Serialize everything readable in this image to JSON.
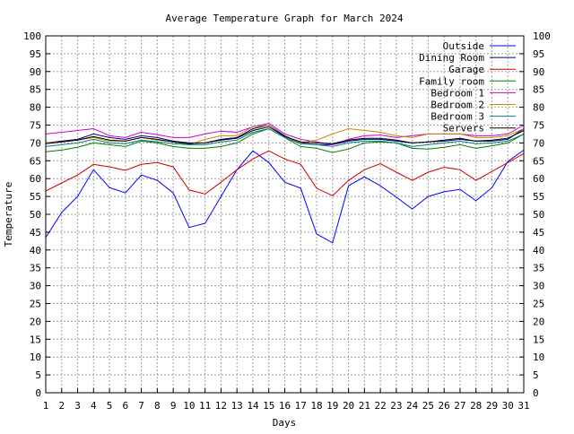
{
  "chart_data": {
    "type": "line",
    "title": "Average Temperature Graph for March 2024",
    "xlabel": "Days",
    "ylabel": "Temperature",
    "xlim": [
      1,
      31
    ],
    "ylim": [
      0,
      100
    ],
    "grid": true,
    "legend_position": "top-right",
    "x": [
      1,
      2,
      3,
      4,
      5,
      6,
      7,
      8,
      9,
      10,
      11,
      12,
      13,
      14,
      15,
      16,
      17,
      18,
      19,
      20,
      21,
      22,
      23,
      24,
      25,
      26,
      27,
      28,
      29,
      30,
      31
    ],
    "x_ticks": [
      "1",
      "2",
      "3",
      "4",
      "5",
      "6",
      "7",
      "8",
      "9",
      "10",
      "11",
      "12",
      "13",
      "14",
      "15",
      "16",
      "17",
      "18",
      "19",
      "20",
      "21",
      "22",
      "23",
      "24",
      "25",
      "26",
      "27",
      "28",
      "29",
      "30",
      "31"
    ],
    "y_ticks": [
      "0",
      "5",
      "10",
      "15",
      "20",
      "25",
      "30",
      "35",
      "40",
      "45",
      "50",
      "55",
      "60",
      "65",
      "70",
      "75",
      "80",
      "85",
      "90",
      "95",
      "100"
    ],
    "series": [
      {
        "name": "Outside",
        "color": "#0000ff",
        "values": [
          43.5,
          50.5,
          55,
          62.5,
          57.5,
          56,
          61,
          59.5,
          56,
          46.3,
          47.5,
          55,
          62.5,
          67.8,
          64.5,
          59,
          57.3,
          44.5,
          42,
          58,
          60.5,
          58,
          54.8,
          51.5,
          55,
          56.3,
          57,
          53.8,
          57.5,
          64.8,
          68
        ]
      },
      {
        "name": "Dining Room",
        "color": "#000080",
        "values": [
          70,
          70.5,
          71,
          72.5,
          71.5,
          71,
          72,
          71.5,
          70.5,
          70,
          70,
          71,
          71.5,
          74,
          75,
          72,
          70,
          69.5,
          69.5,
          70.5,
          71,
          71,
          70.5,
          70,
          70.3,
          70.5,
          71,
          70.5,
          70.5,
          71,
          74
        ]
      },
      {
        "name": "Garage",
        "color": "#cc0000",
        "values": [
          56.5,
          58.8,
          61,
          64,
          63.3,
          62.3,
          64,
          64.5,
          63.3,
          56.8,
          55.7,
          59,
          62.5,
          65.5,
          67.8,
          65.5,
          64,
          57.3,
          55.2,
          59.5,
          62.5,
          64.2,
          61.8,
          59.5,
          61.8,
          63.2,
          62.5,
          59.5,
          62,
          64.5,
          67
        ]
      },
      {
        "name": "Family room",
        "color": "#008000",
        "values": [
          67.5,
          68,
          68.8,
          70,
          69.5,
          69,
          70.5,
          70,
          69,
          68.5,
          68.5,
          69,
          70,
          72.5,
          74,
          71.5,
          69,
          68.5,
          67.3,
          68.3,
          70,
          70.3,
          70,
          68.5,
          68.3,
          68.8,
          69.5,
          68.5,
          69.2,
          70,
          72.5
        ]
      },
      {
        "name": "Bedroom 1",
        "color": "#cc00cc",
        "values": [
          72.5,
          73,
          73.5,
          74,
          72,
          71.5,
          73,
          72.3,
          71.5,
          71.5,
          72.5,
          73.3,
          73,
          74.5,
          75.5,
          72.5,
          71,
          70.3,
          69.5,
          71,
          72,
          72.2,
          71.5,
          72,
          72.5,
          72.5,
          72.5,
          72,
          72,
          72.5,
          75
        ]
      },
      {
        "name": "Bedroom 2",
        "color": "#cc8800",
        "values": [
          70,
          70.3,
          70.8,
          71.5,
          70.5,
          70.5,
          71.5,
          70.8,
          70.3,
          69.5,
          71,
          72,
          72,
          74.5,
          75,
          71.5,
          70,
          70.8,
          72.5,
          74,
          73.5,
          73,
          72,
          71.5,
          72.5,
          72.5,
          72.5,
          71.5,
          71.5,
          72,
          74
        ]
      },
      {
        "name": "Bedroom 3",
        "color": "#008080",
        "values": [
          69,
          69.5,
          70,
          71,
          70,
          69.8,
          70.8,
          70.3,
          69.8,
          69.5,
          69.5,
          70.3,
          70.8,
          73,
          74,
          71.5,
          69.8,
          69.5,
          69,
          70,
          70.5,
          70.5,
          70,
          69,
          69.5,
          70,
          70.5,
          69.8,
          70,
          70.5,
          72.5
        ]
      },
      {
        "name": "Servers",
        "color": "#000000",
        "values": [
          69.8,
          70.3,
          70.8,
          71.8,
          70.8,
          70.5,
          71.5,
          71,
          70.3,
          69.8,
          70,
          70.8,
          71.3,
          73.5,
          74.5,
          71.8,
          70.3,
          70,
          69.8,
          70.8,
          71.3,
          71.3,
          70.8,
          70,
          70.3,
          70.8,
          71.3,
          70.5,
          70.8,
          71.3,
          73.5
        ]
      }
    ]
  }
}
